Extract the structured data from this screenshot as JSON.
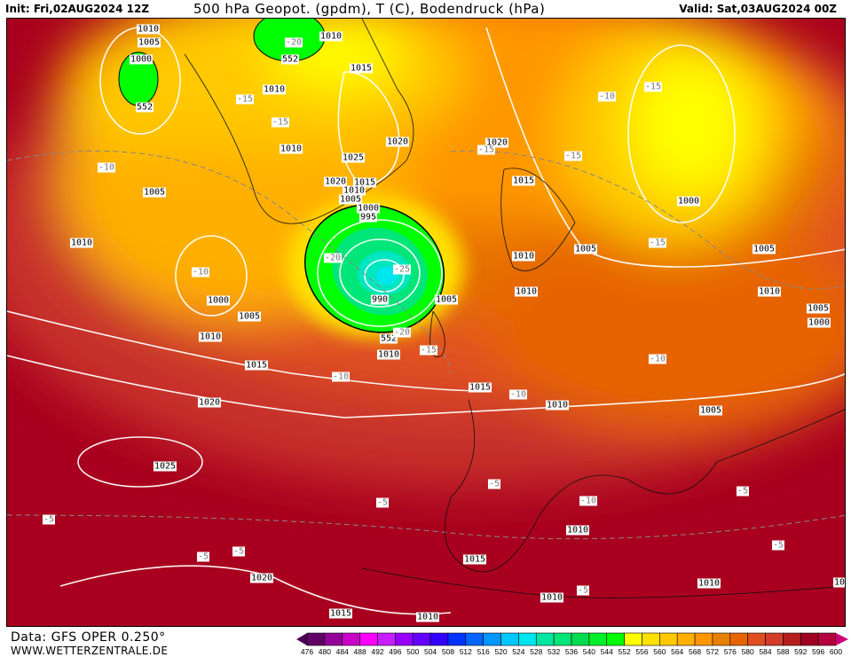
{
  "header": {
    "init": "Init: Fri,02AUG2024 12Z",
    "title": "500 hPa Geopot. (gpdm), T (C), Bodendruck (hPa)",
    "valid": "Valid: Sat,03AUG2024 00Z"
  },
  "footer": {
    "data_source": "Data: GFS OPER 0.250°",
    "website": "WWW.WETTERZENTRALE.DE"
  },
  "colorbar": {
    "ticks": [
      "476",
      "480",
      "484",
      "488",
      "492",
      "496",
      "500",
      "504",
      "508",
      "512",
      "516",
      "520",
      "524",
      "528",
      "532",
      "536",
      "540",
      "544",
      "552",
      "556",
      "560",
      "564",
      "568",
      "572",
      "576",
      "580",
      "584",
      "588",
      "592",
      "596",
      "600"
    ],
    "colors": [
      "#4a0050",
      "#620066",
      "#96009a",
      "#c800c8",
      "#ff00ff",
      "#c81eff",
      "#9600ff",
      "#6400ff",
      "#3200ff",
      "#0032ff",
      "#0064ff",
      "#0096ff",
      "#00c8ff",
      "#00e6f0",
      "#00e6a0",
      "#00e678",
      "#00dc50",
      "#00f028",
      "#00ff00",
      "#ffff00",
      "#ffe100",
      "#ffc800",
      "#ffaf00",
      "#ff9600",
      "#e68000",
      "#e66400",
      "#e04d20",
      "#d23c28",
      "#b41e1e",
      "#a00020",
      "#b4003c",
      "#c80078"
    ]
  },
  "map": {
    "labels": [
      "1010",
      "1005",
      "1000",
      "552",
      "1010",
      "-20",
      "552",
      "1015",
      "1010",
      "-15",
      "-15",
      "1010",
      "1020",
      "1025",
      "1020",
      "1015",
      "1010",
      "1005",
      "1000",
      "995",
      "-20",
      "-25",
      "990",
      "1005",
      "552",
      "-20",
      "-15",
      "1010",
      "-10",
      "1005",
      "1010",
      "-10",
      "1000",
      "1005",
      "1010",
      "1015",
      "1020",
      "-10",
      "1015",
      "-10",
      "1010",
      "1020",
      "-15",
      "-15",
      "1015",
      "-10",
      "-15",
      "1000",
      "-15",
      "1005",
      "1010",
      "1005",
      "1010",
      "1010",
      "1005",
      "1000",
      "-10",
      "1005",
      "-5",
      "-5",
      "-10",
      "1010",
      "-5",
      "1025",
      "-5",
      "-5",
      "-5",
      "1020",
      "1015",
      "-5",
      "1010",
      "1010",
      "1015",
      "1010",
      "-5",
      "10"
    ]
  }
}
